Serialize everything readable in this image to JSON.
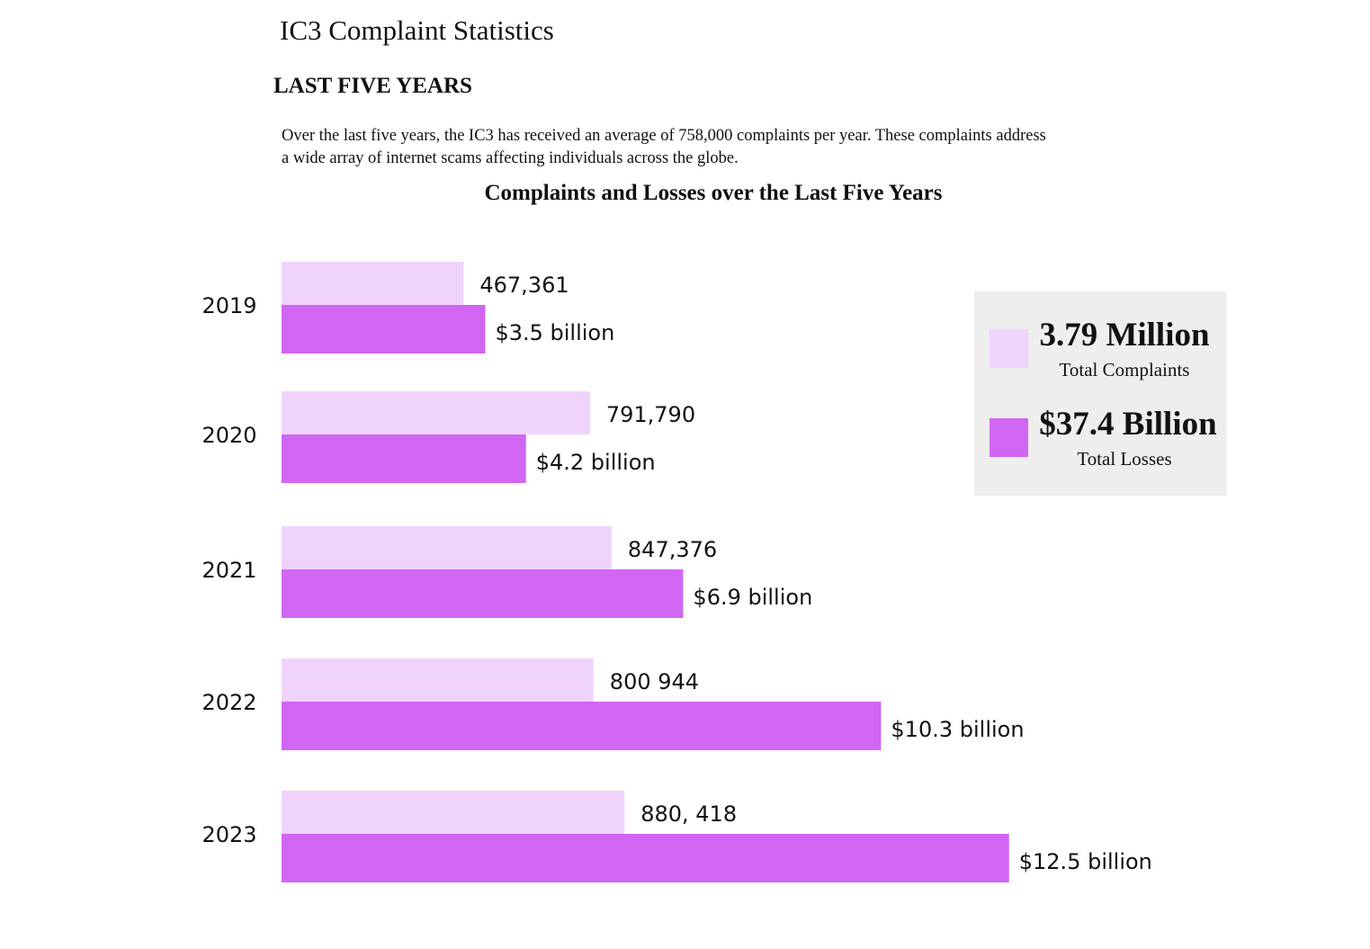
{
  "header": {
    "title": "IC3 Complaint Statistics",
    "section_heading": "LAST FIVE YEARS",
    "intro_line1": "Over the last five years, the IC3  has received an average of 758,000 complaints per year. These complaints address",
    "intro_line2": "a wide array of internet scams affecting individuals across the globe."
  },
  "chart_data": {
    "type": "bar",
    "orientation": "horizontal",
    "title": "Complaints and Losses over the Last Five Years",
    "categories": [
      "2019",
      "2020",
      "2021",
      "2022",
      "2023"
    ],
    "series": [
      {
        "name": "Total Complaints",
        "color": "#f0d3fb",
        "values": [
          467361,
          791790,
          847376,
          800944,
          880418
        ],
        "labels": [
          "467,361",
          "791,790",
          "847,376",
          "800 944",
          "880, 418"
        ]
      },
      {
        "name": "Total Losses",
        "color": "#d066f2",
        "values": [
          3.5,
          4.2,
          6.9,
          10.3,
          12.5
        ],
        "labels": [
          "$3.5 billion",
          "$4.2 billion",
          "$6.9 billion",
          "$10.3 billion",
          "$12.5 billion"
        ]
      }
    ],
    "grid": false,
    "legend": "right"
  },
  "legend": {
    "complaints_total": "3.79 Million",
    "complaints_label": "Total Complaints",
    "losses_total": "$37.4 Billion",
    "losses_label": "Total Losses"
  }
}
